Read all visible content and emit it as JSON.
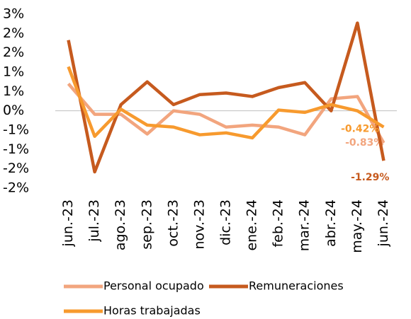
{
  "chart_data": {
    "type": "line",
    "categories": [
      "jun.-23",
      "jul.-23",
      "ago.-23",
      "sep.-23",
      "oct.-23",
      "nov.-23",
      "dic.-23",
      "ene.-24",
      "feb.-24",
      "mar.-24",
      "abr.-24",
      "may.-24",
      "jun.-24"
    ],
    "series": [
      {
        "name": "Personal ocupado",
        "color": "#F2A57E",
        "values": [
          0.7,
          -0.09,
          -0.09,
          -0.6,
          0,
          -0.09,
          -0.42,
          -0.37,
          -0.42,
          -0.62,
          0.31,
          0.37,
          -0.83
        ],
        "value_labels": [
          null,
          null,
          null,
          null,
          null,
          null,
          null,
          null,
          null,
          null,
          null,
          null,
          "-0.83%"
        ]
      },
      {
        "name": "Remuneraciones",
        "color": "#C65A1E",
        "values": [
          1.83,
          -1.58,
          0.16,
          0.75,
          0.16,
          0.42,
          0.46,
          0.37,
          0.6,
          0.73,
          0,
          2.27,
          -1.29
        ],
        "value_labels": [
          null,
          null,
          null,
          null,
          null,
          null,
          null,
          null,
          null,
          null,
          null,
          null,
          "-1.29%"
        ]
      },
      {
        "name": "Horas trabajadas",
        "color": "#F79A2E",
        "values": [
          1.14,
          -0.66,
          0.04,
          -0.37,
          -0.42,
          -0.62,
          -0.57,
          -0.7,
          0.02,
          -0.04,
          0.16,
          0,
          -0.42
        ],
        "value_labels": [
          null,
          null,
          null,
          null,
          null,
          null,
          null,
          null,
          null,
          null,
          null,
          null,
          "-0.42%"
        ]
      }
    ],
    "ylim": [
      -2,
      2.5
    ],
    "yticks": [
      {
        "value": 2.5,
        "label": "3%"
      },
      {
        "value": 2,
        "label": "2%"
      },
      {
        "value": 1.5,
        "label": "2%"
      },
      {
        "value": 1,
        "label": "1%"
      },
      {
        "value": 0.5,
        "label": "1%"
      },
      {
        "value": 0,
        "label": "0%"
      },
      {
        "value": -0.5,
        "label": "-1%"
      },
      {
        "value": -1,
        "label": "-1%"
      },
      {
        "value": -1.5,
        "label": "-2%"
      },
      {
        "value": -2,
        "label": "-2%"
      }
    ],
    "grid": false
  }
}
